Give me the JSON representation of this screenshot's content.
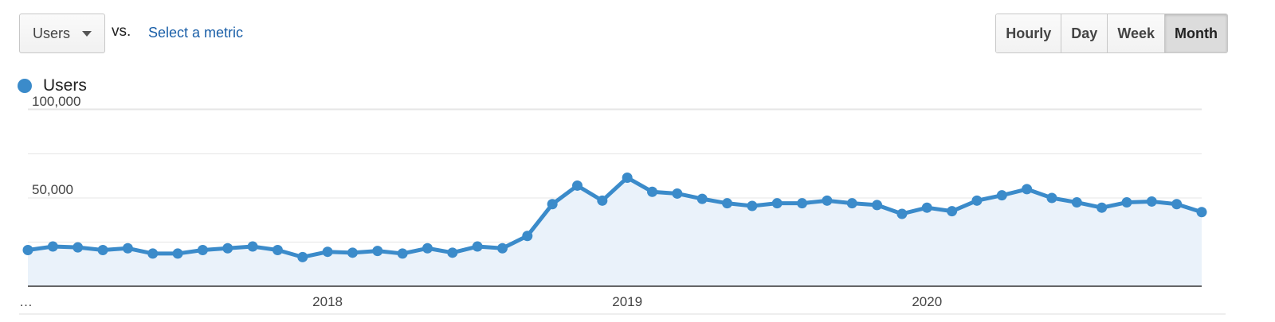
{
  "toolbar": {
    "metric_value": "Users",
    "vs_label": "vs.",
    "select_metric_label": "Select a metric",
    "periods": [
      "Hourly",
      "Day",
      "Week",
      "Month"
    ],
    "active_period": "Month"
  },
  "colors": {
    "series": "#3b8bca",
    "area": "#eaf2fa",
    "grid": "#e6e6e6",
    "axis": "#333333"
  },
  "chart_data": {
    "type": "area",
    "title": "",
    "xlabel": "",
    "ylabel": "",
    "ylim": [
      0,
      100000
    ],
    "yticks": [
      {
        "value": 100000,
        "label": "100,000"
      },
      {
        "value": 50000,
        "label": "50,000"
      }
    ],
    "xticks": [
      {
        "index": 0,
        "label": "…"
      },
      {
        "index": 12,
        "label": "2018"
      },
      {
        "index": 24,
        "label": "2019"
      },
      {
        "index": 36,
        "label": "2020"
      }
    ],
    "grid": true,
    "legend": "top-left",
    "series": [
      {
        "name": "Users",
        "values": [
          20500,
          22500,
          22000,
          20500,
          21500,
          18500,
          18500,
          20500,
          21500,
          22500,
          20500,
          16500,
          19500,
          19000,
          20000,
          18500,
          21500,
          19000,
          22500,
          21500,
          28500,
          46500,
          57000,
          48500,
          61500,
          53500,
          52500,
          49500,
          47000,
          45500,
          47000,
          47000,
          48500,
          47000,
          46000,
          41000,
          44500,
          42500,
          48500,
          51500,
          55000,
          50000,
          47500,
          44500,
          47500,
          48000,
          46500,
          42000
        ]
      }
    ]
  }
}
